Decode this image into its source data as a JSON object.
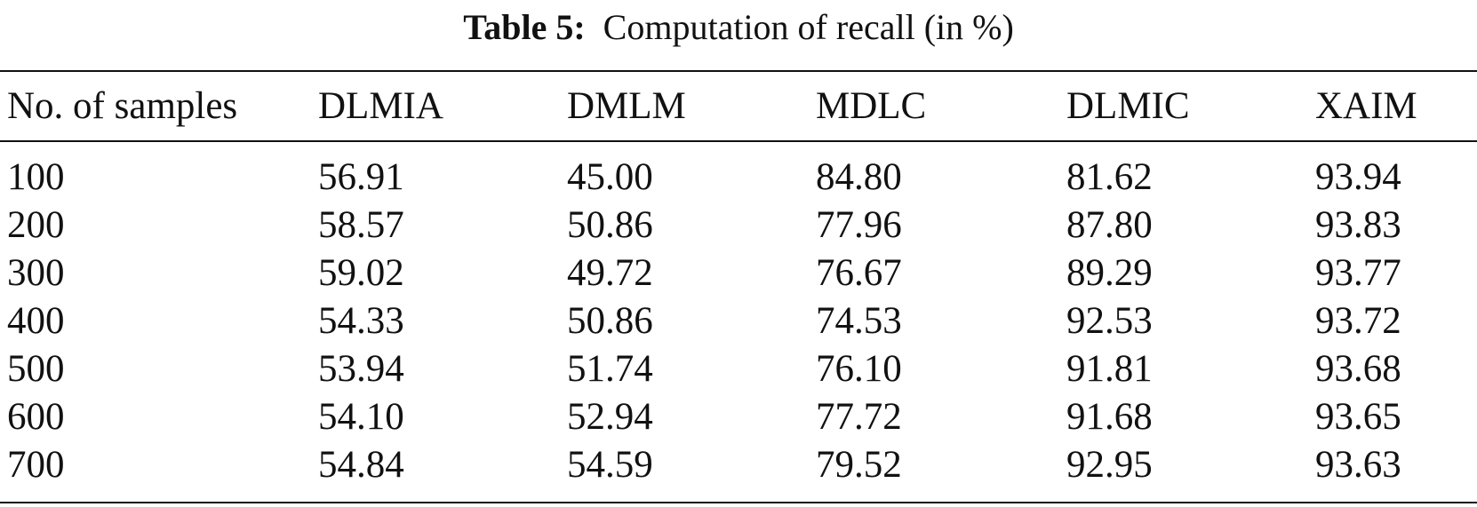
{
  "caption": {
    "label": "Table 5:",
    "text": "Computation of recall (in %)"
  },
  "table": {
    "headers": [
      "No. of samples",
      "DLMIA",
      "DMLM",
      "MDLC",
      "DLMIC",
      "XAIM"
    ],
    "rows": [
      [
        "100",
        "56.91",
        "45.00",
        "84.80",
        "81.62",
        "93.94"
      ],
      [
        "200",
        "58.57",
        "50.86",
        "77.96",
        "87.80",
        "93.83"
      ],
      [
        "300",
        "59.02",
        "49.72",
        "76.67",
        "89.29",
        "93.77"
      ],
      [
        "400",
        "54.33",
        "50.86",
        "74.53",
        "92.53",
        "93.72"
      ],
      [
        "500",
        "53.94",
        "51.74",
        "76.10",
        "91.81",
        "93.68"
      ],
      [
        "600",
        "54.10",
        "52.94",
        "77.72",
        "91.68",
        "93.65"
      ],
      [
        "700",
        "54.84",
        "54.59",
        "79.52",
        "92.95",
        "93.63"
      ]
    ]
  }
}
